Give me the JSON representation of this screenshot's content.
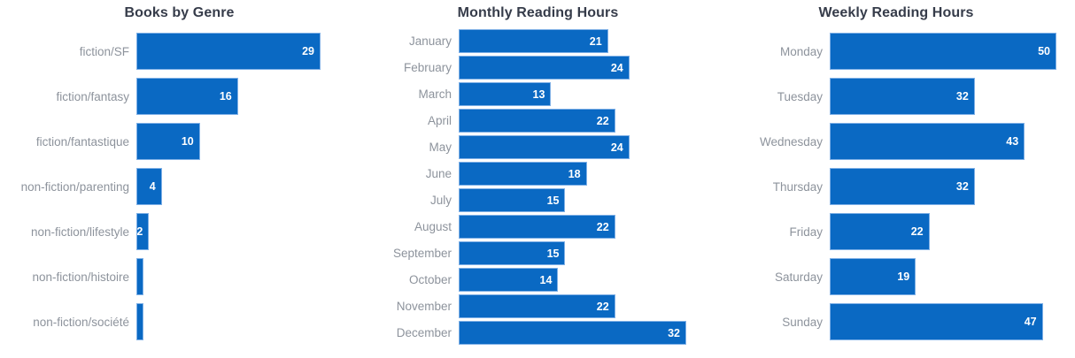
{
  "colors": {
    "background": "#ffffff",
    "bar_fill": "#0a69c3",
    "bar_border": "#7fb0e6",
    "title": "#363c4a",
    "category_label": "#8d939c",
    "value_label": "#ffffff"
  },
  "chart_data": [
    {
      "type": "bar",
      "orientation": "horizontal",
      "title": "Books by Genre",
      "categories": [
        "fiction/SF",
        "fiction/fantasy",
        "fiction/fantastique",
        "non-fiction/parenting",
        "non-fiction/lifestyle",
        "non-fiction/histoire",
        "non-fiction/société"
      ],
      "values": [
        29,
        16,
        10,
        4,
        2,
        1,
        1
      ],
      "xlim": [
        0,
        29
      ],
      "xlabel": "",
      "ylabel": "",
      "grid": false,
      "legend": "none",
      "value_label_position": "inside-end"
    },
    {
      "type": "bar",
      "orientation": "horizontal",
      "title": "Monthly Reading Hours",
      "categories": [
        "January",
        "February",
        "March",
        "April",
        "May",
        "June",
        "July",
        "August",
        "September",
        "October",
        "November",
        "December"
      ],
      "values": [
        21,
        24,
        13,
        22,
        24,
        18,
        15,
        22,
        15,
        14,
        22,
        32
      ],
      "xlim": [
        0,
        32
      ],
      "xlabel": "",
      "ylabel": "",
      "grid": false,
      "legend": "none",
      "value_label_position": "inside-end"
    },
    {
      "type": "bar",
      "orientation": "horizontal",
      "title": "Weekly Reading Hours",
      "categories": [
        "Monday",
        "Tuesday",
        "Wednesday",
        "Thursday",
        "Friday",
        "Saturday",
        "Sunday"
      ],
      "values": [
        50,
        32,
        43,
        32,
        22,
        19,
        47
      ],
      "xlim": [
        0,
        50
      ],
      "xlabel": "",
      "ylabel": "",
      "grid": false,
      "legend": "none",
      "value_label_position": "inside-end"
    }
  ]
}
